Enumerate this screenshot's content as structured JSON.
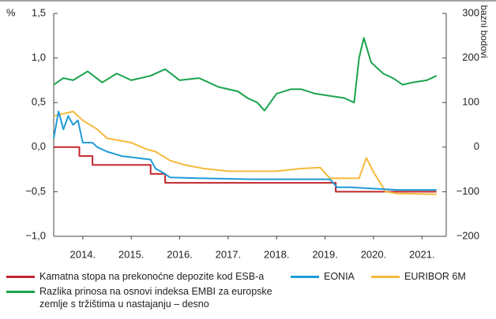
{
  "chart_data": {
    "type": "line",
    "y_label": "%",
    "y2_label": "bazni bodovi",
    "xlim": [
      2013.9,
      2022.0
    ],
    "xticks": [
      {
        "value": 2014.5,
        "label": "2014."
      },
      {
        "value": 2015.5,
        "label": "2015."
      },
      {
        "value": 2016.5,
        "label": "2016."
      },
      {
        "value": 2017.5,
        "label": "2017."
      },
      {
        "value": 2018.5,
        "label": "2018."
      },
      {
        "value": 2019.5,
        "label": "2019."
      },
      {
        "value": 2020.5,
        "label": "2020."
      },
      {
        "value": 2021.5,
        "label": "2021."
      }
    ],
    "ylim": [
      -1.0,
      1.5
    ],
    "yticks": [
      {
        "value": -1.0,
        "label": "−1,0"
      },
      {
        "value": -0.5,
        "label": "−0,5"
      },
      {
        "value": 0,
        "label": "0,0"
      },
      {
        "value": 0.5,
        "label": "0,5"
      },
      {
        "value": 1.0,
        "label": "1,0"
      },
      {
        "value": 1.5,
        "label": "1,5"
      }
    ],
    "y2lim": [
      -200,
      300
    ],
    "y2ticks": [
      {
        "value": -200,
        "label": "−200"
      },
      {
        "value": -100,
        "label": "−100"
      },
      0,
      100,
      200,
      300
    ],
    "grid": false,
    "series": [
      {
        "name": "Kamatna stopa na prekonoćne depozite kod ESB-a",
        "color": "#c0272d",
        "x": [
          2013.9,
          2014.43,
          2014.43,
          2014.7,
          2014.7,
          2015.9,
          2015.9,
          2016.2,
          2016.2,
          2019.72,
          2019.72,
          2021.8
        ],
        "values": [
          0,
          0,
          -0.1,
          -0.1,
          -0.2,
          -0.2,
          -0.3,
          -0.3,
          -0.4,
          -0.4,
          -0.5,
          -0.5
        ]
      },
      {
        "name": "EONIA",
        "color": "#1e9bd7",
        "x": [
          2013.9,
          2014.0,
          2014.1,
          2014.2,
          2014.3,
          2014.4,
          2014.5,
          2014.7,
          2014.8,
          2015.0,
          2015.3,
          2015.6,
          2015.9,
          2016.0,
          2016.2,
          2016.3,
          2017.0,
          2018.0,
          2019.0,
          2019.6,
          2019.75,
          2020.0,
          2021.0,
          2021.8
        ],
        "values": [
          0.1,
          0.4,
          0.2,
          0.35,
          0.25,
          0.3,
          0.05,
          0.05,
          0.0,
          -0.05,
          -0.1,
          -0.12,
          -0.14,
          -0.24,
          -0.3,
          -0.34,
          -0.35,
          -0.36,
          -0.36,
          -0.36,
          -0.45,
          -0.45,
          -0.48,
          -0.48
        ]
      },
      {
        "name": "EURIBOR 6M",
        "color": "#f6b93b",
        "x": [
          2013.9,
          2014.3,
          2014.5,
          2014.8,
          2015.0,
          2015.5,
          2015.8,
          2016.0,
          2016.3,
          2016.6,
          2017.0,
          2017.5,
          2018.0,
          2018.5,
          2019.0,
          2019.4,
          2019.6,
          2019.8,
          2020.2,
          2020.3,
          2020.35,
          2020.5,
          2020.75,
          2021.0,
          2021.8
        ],
        "values": [
          0.35,
          0.4,
          0.3,
          0.2,
          0.1,
          0.05,
          -0.02,
          -0.05,
          -0.15,
          -0.2,
          -0.24,
          -0.27,
          -0.27,
          -0.27,
          -0.24,
          -0.23,
          -0.35,
          -0.35,
          -0.35,
          -0.2,
          -0.12,
          -0.28,
          -0.5,
          -0.52,
          -0.53
        ]
      },
      {
        "name": "Razlika prinosa na osnovi indeksa EMBI za europske zemlje s tržištima u nastajanju – desno",
        "color": "#1aa34a",
        "axis": "y2",
        "x": [
          2013.9,
          2014.1,
          2014.3,
          2014.6,
          2014.9,
          2015.2,
          2015.5,
          2015.9,
          2016.2,
          2016.5,
          2016.9,
          2017.3,
          2017.7,
          2017.9,
          2018.1,
          2018.25,
          2018.5,
          2018.8,
          2019.0,
          2019.3,
          2019.6,
          2019.9,
          2020.1,
          2020.2,
          2020.3,
          2020.45,
          2020.7,
          2020.9,
          2021.1,
          2021.3,
          2021.6,
          2021.8
        ],
        "values": [
          140,
          155,
          150,
          170,
          145,
          165,
          150,
          160,
          175,
          150,
          155,
          135,
          125,
          110,
          100,
          82,
          120,
          130,
          130,
          120,
          115,
          110,
          100,
          200,
          245,
          190,
          165,
          155,
          140,
          145,
          150,
          160
        ]
      }
    ]
  }
}
